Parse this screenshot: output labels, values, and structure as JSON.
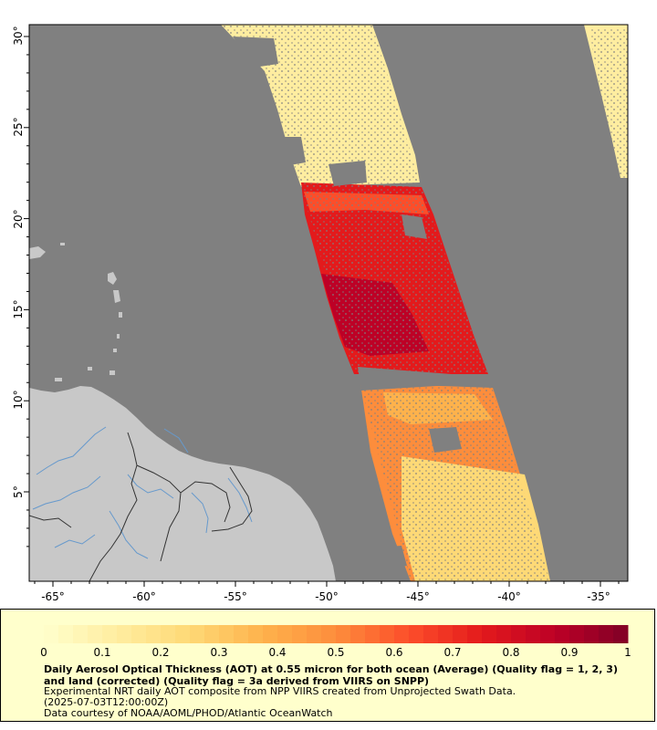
{
  "map": {
    "colors": {
      "ocean_nodata": "#808080",
      "land": "#c8c8c8",
      "border": "#333333",
      "river": "#6699cc",
      "frame": "#000000"
    },
    "lon_ticks": [
      "-65°",
      "-60°",
      "-55°",
      "-50°",
      "-45°",
      "-40°",
      "-35°"
    ],
    "lat_ticks": [
      "5°",
      "10°",
      "15°",
      "20°",
      "25°",
      "30°"
    ]
  },
  "legend": {
    "colorbar_labels": [
      "0",
      "0.1",
      "0.2",
      "0.3",
      "0.4",
      "0.5",
      "0.6",
      "0.7",
      "0.8",
      "0.9",
      "1"
    ],
    "title": "Daily Aerosol Optical Thickness (AOT) at 0.55 micron for both ocean (Average) (Quality flag = 1, 2, 3) and land (corrected) (Quality flag = 3a derived from VIIRS on SNPP)",
    "subtitle": "Experimental NRT daily AOT composite from NPP VIIRS created from Unprojected Swath Data.",
    "date": "(2025-07-03T12:00:00Z)",
    "credit": "Data courtesy of NOAA/AOML/PHOD/Atlantic OceanWatch",
    "colorscale": [
      "#ffffcc",
      "#ffeda0",
      "#fed976",
      "#feb24c",
      "#fd8d3c",
      "#fc4e2a",
      "#e31a1c",
      "#bd0026",
      "#800026"
    ]
  }
}
